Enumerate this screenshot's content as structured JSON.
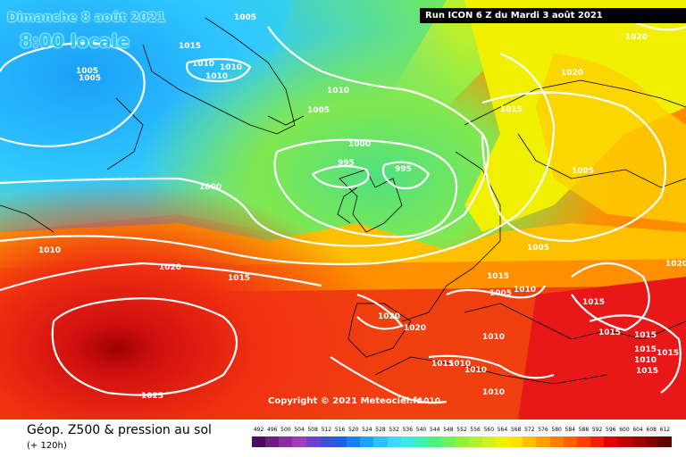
{
  "header": {
    "date": "Dimanche 8 août 2021",
    "time": "8:00 locale",
    "run_info": "Run ICON 6 Z du Mardi 3 août 2021"
  },
  "copyright": "Copyright © 2021 Meteociel.fr",
  "legend": {
    "title": "Géop. Z500 & pression au sol",
    "subtitle": "(+ 120h)",
    "ticks": [
      "492",
      "496",
      "500",
      "504",
      "508",
      "512",
      "516",
      "520",
      "524",
      "528",
      "532",
      "536",
      "540",
      "544",
      "548",
      "552",
      "556",
      "560",
      "564",
      "568",
      "572",
      "576",
      "580",
      "584",
      "588",
      "592",
      "596",
      "600",
      "604",
      "608",
      "612"
    ],
    "colors": [
      "#4a0e5c",
      "#6a1e7e",
      "#8a2e9e",
      "#a03cbe",
      "#7040c8",
      "#4050d0",
      "#2060e0",
      "#1a80f0",
      "#20a0ff",
      "#30c0ff",
      "#40d8ff",
      "#40e8e0",
      "#40f0b0",
      "#50f080",
      "#70f060",
      "#90f040",
      "#b0f030",
      "#d0f020",
      "#f0f000",
      "#ffe000",
      "#ffc000",
      "#ffa000",
      "#ff8000",
      "#ff6000",
      "#ff4000",
      "#f02000",
      "#e00000",
      "#c00000",
      "#a00000",
      "#800000",
      "#600000"
    ]
  },
  "isobar_labels": [
    {
      "text": "1005"
    },
    {
      "text": "1015"
    },
    {
      "text": "1010"
    },
    {
      "text": "1010"
    },
    {
      "text": "1010"
    },
    {
      "text": "1005"
    },
    {
      "text": "1005"
    },
    {
      "text": "1010"
    },
    {
      "text": "1005"
    },
    {
      "text": "1000"
    },
    {
      "text": "995"
    },
    {
      "text": "995"
    },
    {
      "text": "1000"
    },
    {
      "text": "1010"
    },
    {
      "text": "1020"
    },
    {
      "text": "1015"
    },
    {
      "text": "1020"
    },
    {
      "text": "1020"
    },
    {
      "text": "1015"
    },
    {
      "text": "1005"
    },
    {
      "text": "1005"
    },
    {
      "text": "1015"
    },
    {
      "text": "1005"
    },
    {
      "text": "1010"
    },
    {
      "text": "1015"
    },
    {
      "text": "1020"
    },
    {
      "text": "1020"
    },
    {
      "text": "1010"
    },
    {
      "text": "1015"
    },
    {
      "text": "1015"
    },
    {
      "text": "1015"
    },
    {
      "text": "1010"
    },
    {
      "text": "1010"
    },
    {
      "text": "1025"
    },
    {
      "text": "1010"
    },
    {
      "text": "1015"
    },
    {
      "text": "1015"
    },
    {
      "text": "1010"
    },
    {
      "text": "1015"
    },
    {
      "text": "1010"
    },
    {
      "text": "1020"
    }
  ]
}
